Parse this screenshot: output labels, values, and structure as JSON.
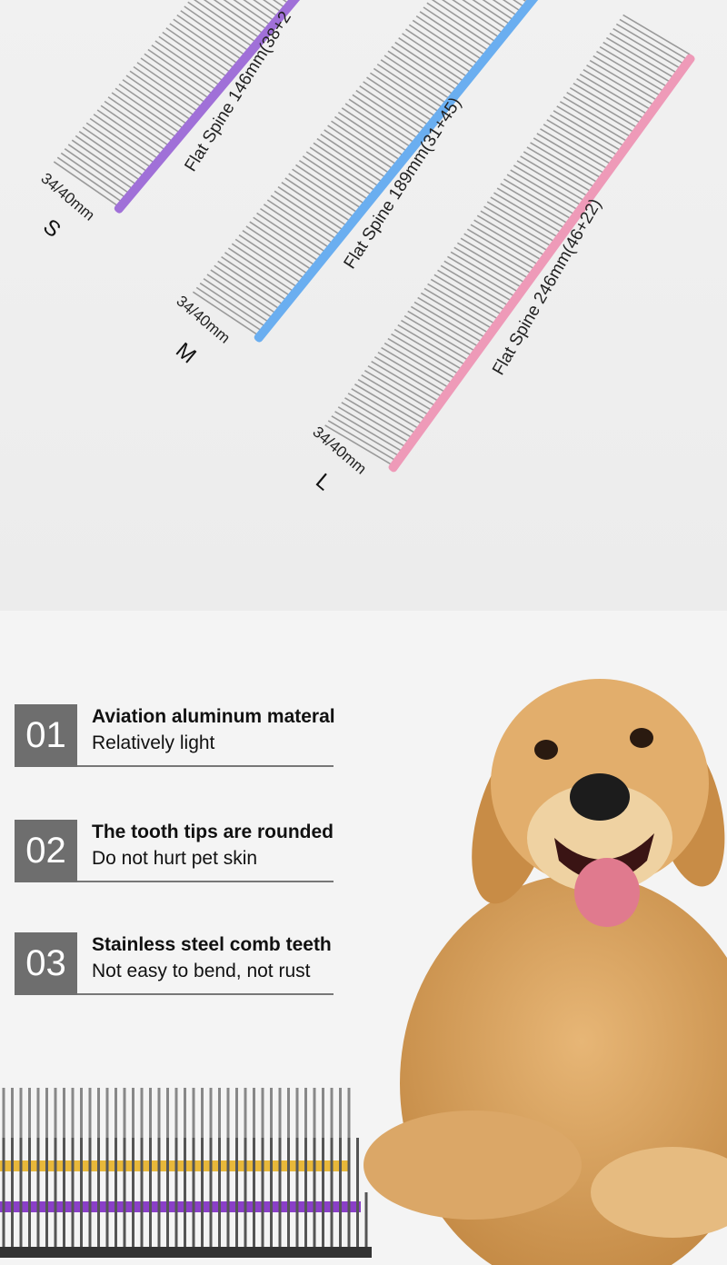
{
  "combs": [
    {
      "size": "S",
      "spec": "Flat Spine 146mm(38+2",
      "tooth": "34/40mm",
      "color": "#a070d8"
    },
    {
      "size": "M",
      "spec": "Flat Spine 189mm(31+45)",
      "tooth": "34/40mm",
      "color": "#6aaef0"
    },
    {
      "size": "L",
      "spec": "Flat Spine 246mm(46+22)",
      "tooth": "34/40mm",
      "color": "#ee9ab8"
    }
  ],
  "features": [
    {
      "num": "01",
      "title": "Aviation aluminum materal",
      "subtitle": "Relatively light"
    },
    {
      "num": "02",
      "title": "The tooth tips are rounded",
      "subtitle": "Do not hurt pet skin"
    },
    {
      "num": "03",
      "title": "Stainless steel comb teeth",
      "subtitle": "Not easy to bend, not rust"
    }
  ],
  "colors": {
    "badge": "#6e6e6e",
    "dog": "#d9a460",
    "stack": [
      "#e8b83a",
      "#8a3fc8",
      "#333333"
    ]
  }
}
